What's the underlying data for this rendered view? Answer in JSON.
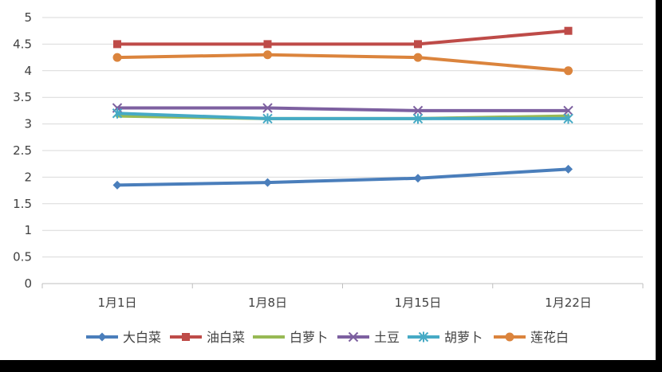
{
  "chart_data": {
    "type": "line",
    "title": "",
    "xlabel": "",
    "ylabel": "",
    "categories": [
      "1月1日",
      "1月8日",
      "1月15日",
      "1月22日"
    ],
    "ylim": [
      0,
      5
    ],
    "yticks": [
      "0",
      "0.5",
      "1",
      "1.5",
      "2",
      "2.5",
      "3",
      "3.5",
      "4",
      "4.5",
      "5"
    ],
    "grid": true,
    "legend": "bottom",
    "series": [
      {
        "name": "大白菜",
        "values": [
          1.85,
          1.9,
          1.98,
          2.15
        ],
        "color": "#4A7EBB",
        "marker": "diamond"
      },
      {
        "name": "油白菜",
        "values": [
          4.5,
          4.5,
          4.5,
          4.75
        ],
        "color": "#BE4B48",
        "marker": "square"
      },
      {
        "name": "白萝卜",
        "values": [
          3.15,
          3.1,
          3.1,
          3.15
        ],
        "color": "#98B954",
        "marker": "none"
      },
      {
        "name": "土豆",
        "values": [
          3.3,
          3.3,
          3.25,
          3.25
        ],
        "color": "#7D60A0",
        "marker": "x"
      },
      {
        "name": "胡萝卜",
        "values": [
          3.2,
          3.1,
          3.1,
          3.1
        ],
        "color": "#46AAC5",
        "marker": "star"
      },
      {
        "name": "莲花白",
        "values": [
          4.25,
          4.3,
          4.25,
          4.0
        ],
        "color": "#DB843D",
        "marker": "circle"
      }
    ]
  }
}
